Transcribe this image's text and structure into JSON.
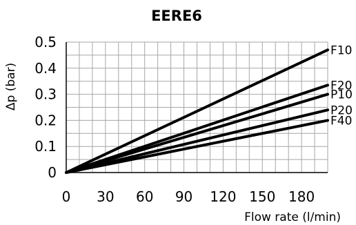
{
  "chart_data": {
    "type": "line",
    "title": "EERE6",
    "xlabel": "Flow rate (l/min)",
    "ylabel": "Δp (bar)",
    "xlim": [
      0,
      200
    ],
    "ylim": [
      0,
      0.5
    ],
    "xticks": [
      "0",
      "30",
      "60",
      "90",
      "120",
      "150",
      "180"
    ],
    "yticks": [
      "0",
      "0.1",
      "0.2",
      "0.3",
      "0.4",
      "0.5"
    ],
    "grid": true,
    "series": [
      {
        "name": "F10",
        "x": [
          0,
          200
        ],
        "y": [
          0,
          0.47
        ]
      },
      {
        "name": "F20",
        "x": [
          0,
          200
        ],
        "y": [
          0,
          0.335
        ]
      },
      {
        "name": "P10",
        "x": [
          0,
          200
        ],
        "y": [
          0,
          0.3
        ]
      },
      {
        "name": "P20",
        "x": [
          0,
          200
        ],
        "y": [
          0,
          0.24
        ]
      },
      {
        "name": "F40",
        "x": [
          0,
          200
        ],
        "y": [
          0,
          0.2
        ]
      }
    ],
    "colors": {
      "line": "#000000",
      "grid": "#a6a6a6",
      "axis": "#000000"
    }
  }
}
